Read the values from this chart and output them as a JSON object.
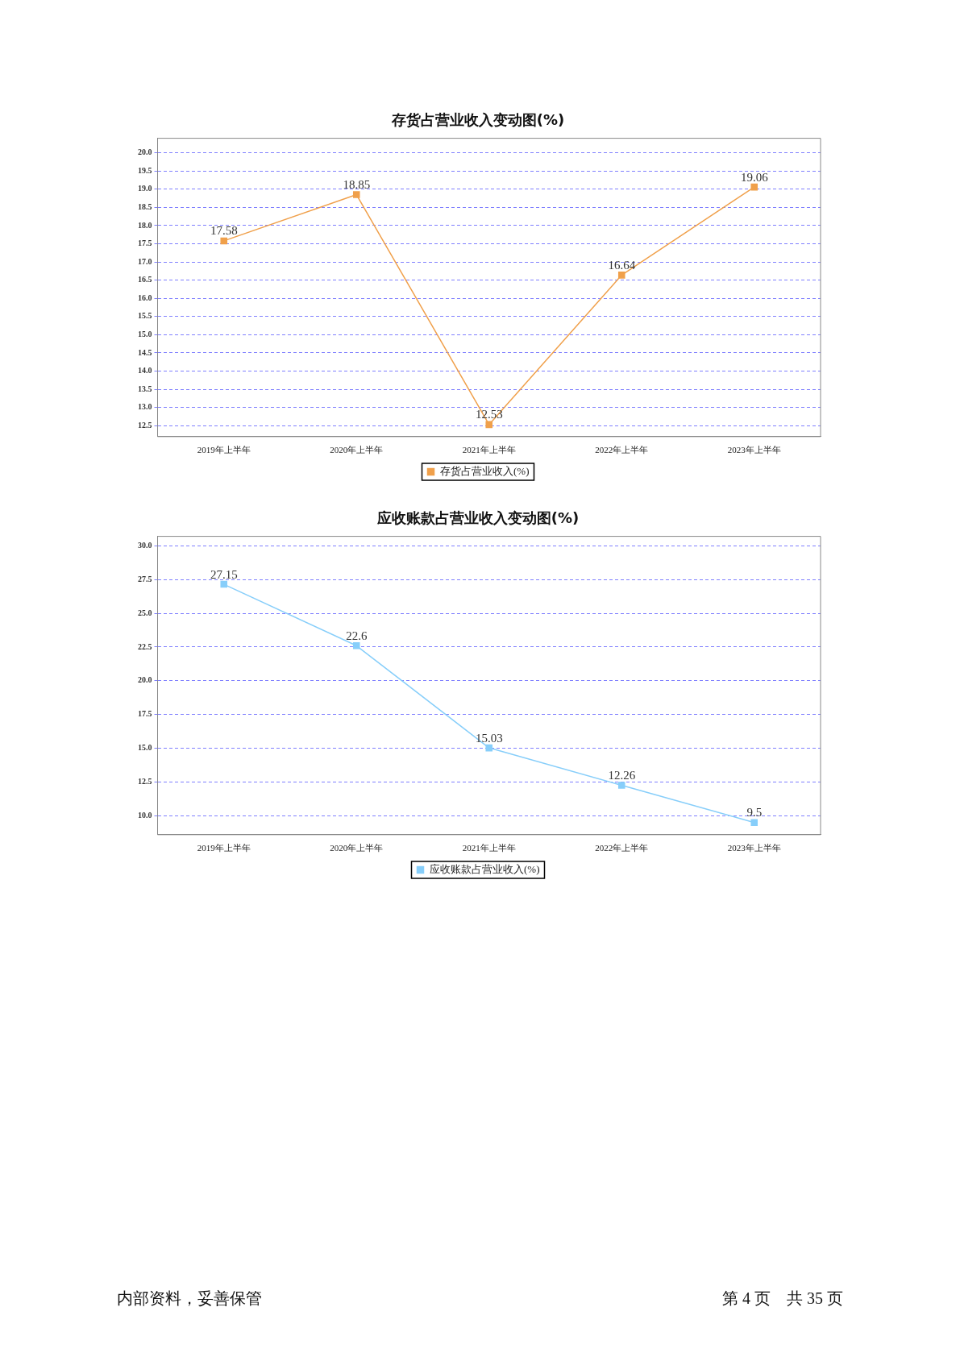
{
  "chart_data": [
    {
      "type": "line",
      "title": "存货占营业收入变动图(%)",
      "categories": [
        "2019年上半年",
        "2020年上半年",
        "2021年上半年",
        "2022年上半年",
        "2023年上半年"
      ],
      "series": [
        {
          "name": "存货占营业收入(%)",
          "color": "#f0a04b",
          "values": [
            17.58,
            18.85,
            12.53,
            16.64,
            19.06
          ]
        }
      ],
      "ylim": [
        12.2,
        20.4
      ],
      "yticks": [
        12.5,
        {
          "value": 13,
          "label": "13.0"
        },
        13.5,
        {
          "value": 14,
          "label": "14.0"
        },
        14.5,
        {
          "value": 15,
          "label": "15.0"
        },
        15.5,
        {
          "value": 16,
          "label": "16.0"
        },
        16.5,
        {
          "value": 17,
          "label": "17.0"
        },
        17.5,
        {
          "value": 18,
          "label": "18.0"
        },
        18.5,
        {
          "value": 19,
          "label": "19.0"
        },
        19.5,
        {
          "value": 20,
          "label": "20.0"
        }
      ],
      "grid": "y",
      "legend": "bottom",
      "marker": "square",
      "line_style": "solid",
      "data_labels": true
    },
    {
      "type": "line",
      "title": "应收账款占营业收入变动图(%)",
      "categories": [
        "2019年上半年",
        "2020年上半年",
        "2021年上半年",
        "2022年上半年",
        "2023年上半年"
      ],
      "series": [
        {
          "name": "应收账款占营业收入(%)",
          "color": "#87cefa",
          "values": [
            27.15,
            22.6,
            15.03,
            12.26,
            9.5
          ]
        }
      ],
      "ylim": [
        8.6,
        30.7
      ],
      "yticks": [
        {
          "value": 10,
          "label": "10.0"
        },
        12.5,
        {
          "value": 15,
          "label": "15.0"
        },
        17.5,
        {
          "value": 20,
          "label": "20.0"
        },
        22.5,
        {
          "value": 25,
          "label": "25.0"
        },
        27.5,
        {
          "value": 30,
          "label": "30.0"
        }
      ],
      "grid": "y",
      "legend": "bottom",
      "marker": "square",
      "line_style": "solid",
      "data_labels": true,
      "annotations": [
        "内部资料，妥善保管",
        "第 4 页　共 35 页"
      ]
    }
  ]
}
